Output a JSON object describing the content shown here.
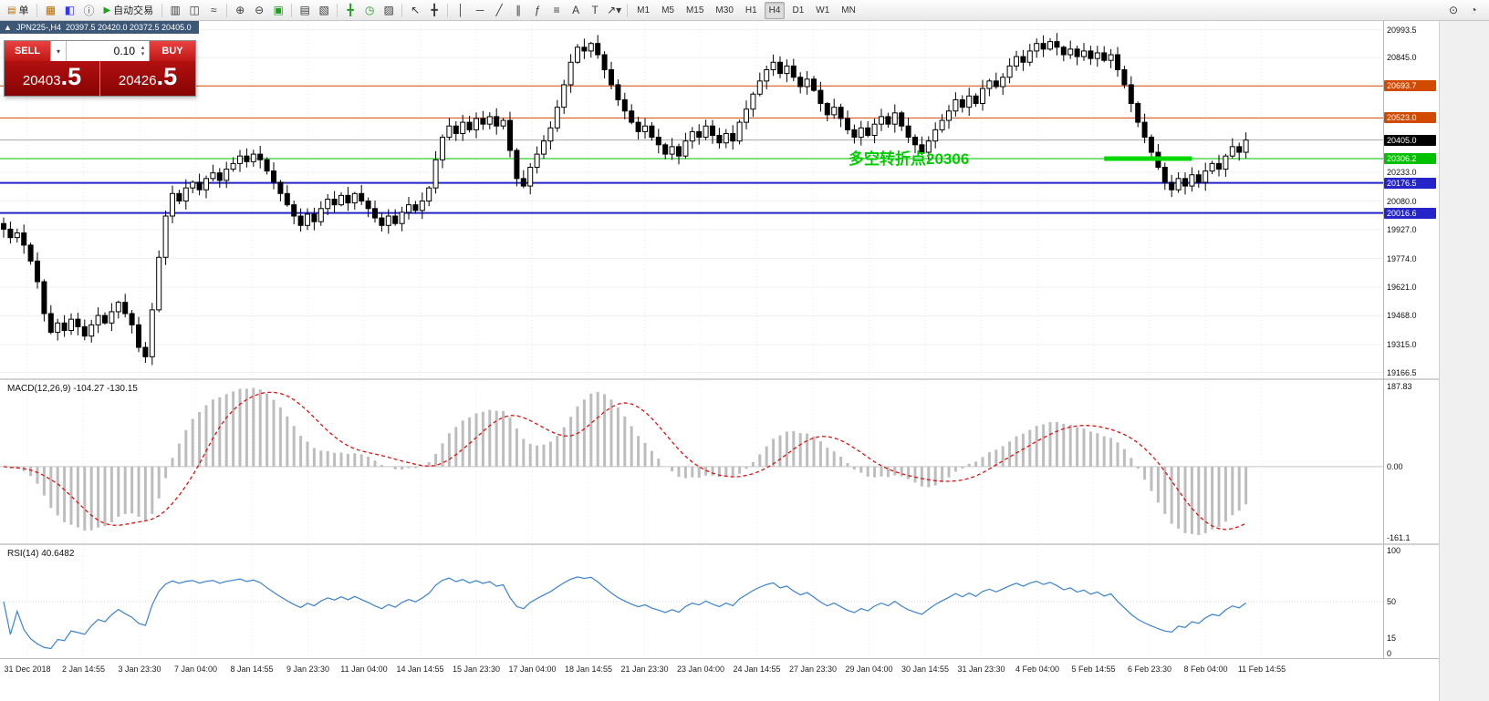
{
  "toolbar": {
    "groups": [
      [
        {
          "t": "btn",
          "name": "new-order-button",
          "icon": "new-order-icon",
          "glyph": "▤",
          "glyph_color": "#b86b00",
          "label": "单"
        }
      ],
      [
        {
          "t": "icon",
          "name": "chart-window-icon",
          "glyph": "▦",
          "glyph_color": "#b86b00"
        },
        {
          "t": "icon",
          "name": "profiles-icon",
          "glyph": "◧",
          "glyph_color": "#33f"
        },
        {
          "t": "icon",
          "name": "data-window-icon",
          "glyph": "ⓘ",
          "glyph_color": "#555"
        },
        {
          "t": "btn",
          "name": "autotrading-button",
          "icon": "autotrading-play-icon",
          "glyph": "▶",
          "glyph_color": "#1d9e1d",
          "label": "自动交易"
        }
      ],
      [
        {
          "t": "icon",
          "name": "bar-chart-icon",
          "glyph": "▥"
        },
        {
          "t": "icon",
          "name": "candlestick-chart-icon",
          "glyph": "◫"
        },
        {
          "t": "icon",
          "name": "line-chart-icon",
          "glyph": "≈"
        }
      ],
      [
        {
          "t": "icon",
          "name": "zoom-in-icon",
          "glyph": "⊕"
        },
        {
          "t": "icon",
          "name": "zoom-out-icon",
          "glyph": "⊖"
        },
        {
          "t": "icon",
          "name": "tile-windows-icon",
          "glyph": "▣",
          "glyph_color": "#1d9e1d"
        }
      ],
      [
        {
          "t": "icon",
          "name": "arrange-windows-icon",
          "glyph": "▤"
        },
        {
          "t": "icon",
          "name": "cascade-windows-icon",
          "glyph": "▧"
        }
      ],
      [
        {
          "t": "icon",
          "name": "add-indicator-icon",
          "glyph": "╋",
          "glyph_color": "#1d9e1d"
        },
        {
          "t": "icon",
          "name": "period-clock-icon",
          "glyph": "◷",
          "glyph_color": "#1d9e1d"
        },
        {
          "t": "icon",
          "name": "templates-icon",
          "glyph": "▨"
        }
      ],
      [
        {
          "t": "icon",
          "name": "cursor-icon",
          "glyph": "↖"
        },
        {
          "t": "icon",
          "name": "crosshair-icon",
          "glyph": "╋"
        }
      ],
      [
        {
          "t": "icon",
          "name": "vertical-line-icon",
          "glyph": "│"
        },
        {
          "t": "icon",
          "name": "horizontal-line-icon",
          "glyph": "─"
        },
        {
          "t": "icon",
          "name": "trendline-icon",
          "glyph": "╱"
        },
        {
          "t": "icon",
          "name": "channel-icon",
          "glyph": "∥"
        },
        {
          "t": "icon",
          "name": "fibonacci-icon",
          "glyph": "ƒ"
        },
        {
          "t": "icon",
          "name": "grid-icon",
          "glyph": "≡"
        },
        {
          "t": "icon",
          "name": "text-icon",
          "glyph": "A"
        },
        {
          "t": "icon",
          "name": "text-label-icon",
          "glyph": "T"
        },
        {
          "t": "icon",
          "name": "shapes-icon",
          "glyph": "↗▾"
        }
      ]
    ],
    "timeframes": {
      "items": [
        "M1",
        "M5",
        "M15",
        "M30",
        "H1",
        "H4",
        "D1",
        "W1",
        "MN"
      ],
      "active": "H4"
    },
    "right": [
      {
        "name": "search-icon",
        "glyph": "⊙"
      },
      {
        "name": "quotes-clock-icon",
        "glyph": "◔"
      }
    ]
  },
  "chart": {
    "collapse_glyph": "▲",
    "title_symbol": "JPN225-,H4",
    "title_ohlc": "20397.5 20420.0 20372.5 20405.0"
  },
  "trade_panel": {
    "sell_label": "SELL",
    "buy_label": "BUY",
    "volume": "0.10",
    "dropdown_glyph": "▾",
    "spin_up_glyph": "▴",
    "spin_down_glyph": "▾",
    "sell_price_main": "20403",
    "sell_price_frac": ".5",
    "buy_price_main": "20426",
    "buy_price_frac": ".5"
  },
  "annotation": {
    "text": "多空转折点20306",
    "color": "#00cc00"
  },
  "price_axis": {
    "min": 19135,
    "max": 21040,
    "plain_labels": [
      {
        "text": "20993.5",
        "value": 20993.5
      },
      {
        "text": "20845.0",
        "value": 20845.0
      },
      {
        "text": "20233.0",
        "value": 20233.0
      },
      {
        "text": "20080.0",
        "value": 20080.0
      },
      {
        "text": "19927.0",
        "value": 19927.0
      },
      {
        "text": "19774.0",
        "value": 19774.0
      },
      {
        "text": "19621.0",
        "value": 19621.0
      },
      {
        "text": "19468.0",
        "value": 19468.0
      },
      {
        "text": "19315.0",
        "value": 19315.0
      },
      {
        "text": "19166.5",
        "value": 19166.5
      }
    ]
  },
  "levels": [
    {
      "value": 20693.7,
      "label": "20693.7",
      "color": "#d24a00",
      "line_width": 1
    },
    {
      "value": 20523.0,
      "label": "20523.0",
      "color": "#d24a00",
      "line_width": 1
    },
    {
      "value": 20405.0,
      "label": "20405.0",
      "color": "#000000",
      "line_color": "#a8a8a8",
      "line_width": 1,
      "current": true
    },
    {
      "value": 20306.2,
      "label": "20306.2",
      "color": "#00c000",
      "line_width": 1
    },
    {
      "value": 20176.5,
      "label": "20176.5",
      "color": "#2424c8",
      "line_width": 2
    },
    {
      "value": 20016.6,
      "label": "20016.6",
      "color": "#2424c8",
      "line_width": 2
    }
  ],
  "highlight_segment": {
    "value": 20306.2,
    "bar_start": 163,
    "bar_end": 176,
    "color": "#00d800",
    "width": 5
  },
  "chart_data": {
    "type": "candlestick",
    "symbol": "JPN225-",
    "timeframe": "H4",
    "open_display": "20397.5",
    "high_display": "20420.0",
    "low_display": "20372.5",
    "close_display": "20405.0",
    "first_open": 19960,
    "up_color": "#ffffff",
    "down_color": "#000000",
    "outline_color": "#000000",
    "closes": [
      19930,
      19885,
      19910,
      19845,
      19760,
      19650,
      19480,
      19380,
      19430,
      19390,
      19450,
      19410,
      19360,
      19420,
      19470,
      19430,
      19490,
      19540,
      19480,
      19420,
      19300,
      19250,
      19500,
      19780,
      20000,
      20120,
      20080,
      20150,
      20180,
      20140,
      20200,
      20230,
      20190,
      20250,
      20280,
      20320,
      20290,
      20330,
      20300,
      20240,
      20180,
      20120,
      20060,
      20000,
      19950,
      20010,
      19970,
      20040,
      20090,
      20060,
      20110,
      20070,
      20120,
      20080,
      20040,
      19990,
      19950,
      20000,
      19960,
      20020,
      20060,
      20030,
      20080,
      20150,
      20300,
      20420,
      20480,
      20440,
      20500,
      20460,
      20520,
      20490,
      20530,
      20480,
      20510,
      20350,
      20200,
      20160,
      20260,
      20330,
      20400,
      20470,
      20580,
      20700,
      20820,
      20900,
      20880,
      20920,
      20860,
      20780,
      20700,
      20620,
      20560,
      20500,
      20450,
      20480,
      20420,
      20380,
      20330,
      20370,
      20320,
      20400,
      20450,
      20420,
      20480,
      20430,
      20390,
      20440,
      20400,
      20500,
      20570,
      20650,
      20720,
      20780,
      20820,
      20760,
      20800,
      20740,
      20690,
      20730,
      20670,
      20600,
      20540,
      20580,
      20520,
      20460,
      20420,
      20470,
      20430,
      20490,
      20530,
      20490,
      20550,
      20480,
      20420,
      20380,
      20340,
      20400,
      20460,
      20510,
      20560,
      20620,
      20580,
      20640,
      20600,
      20680,
      20720,
      20690,
      20740,
      20800,
      20850,
      20820,
      20880,
      20920,
      20890,
      20930,
      20900,
      20860,
      20890,
      20850,
      20880,
      20840,
      20870,
      20830,
      20860,
      20780,
      20700,
      20600,
      20500,
      20420,
      20340,
      20260,
      20180,
      20140,
      20200,
      20160,
      20220,
      20180,
      20240,
      20280,
      20250,
      20320,
      20370,
      20340,
      20405
    ],
    "time_labels": [
      "31 Dec 2018",
      "2 Jan 14:55",
      "3 Jan 23:30",
      "7 Jan 04:00",
      "8 Jan 14:55",
      "9 Jan 23:30",
      "11 Jan 04:00",
      "14 Jan 14:55",
      "15 Jan 23:30",
      "17 Jan 04:00",
      "18 Jan 14:55",
      "21 Jan 23:30",
      "23 Jan 04:00",
      "24 Jan 14:55",
      "27 Jan 23:30",
      "29 Jan 04:00",
      "30 Jan 14:55",
      "31 Jan 23:30",
      "4 Feb 04:00",
      "5 Feb 14:55",
      "6 Feb 23:30",
      "8 Feb 04:00",
      "11 Feb 14:55"
    ],
    "macd": {
      "label": "MACD(12,26,9) -104.27 -130.15",
      "fast": 12,
      "slow": 26,
      "signal": 9,
      "value": -104.27,
      "signal_value": -130.15,
      "hist_color": "#bdbdbd",
      "line_color": "#e01010",
      "ticks": [
        {
          "value": 187.83,
          "text": "187.83"
        },
        {
          "value": 0,
          "text": "0.00"
        },
        {
          "value": -161.1,
          "text": "-161.1"
        }
      ]
    },
    "rsi": {
      "label": "RSI(14) 40.6482",
      "period": 14,
      "value": 40.6482,
      "line_color": "#3b82d0",
      "ticks": [
        {
          "value": 100,
          "text": "100"
        },
        {
          "value": 50,
          "text": "50"
        },
        {
          "value": 15,
          "text": "15"
        },
        {
          "value": 0,
          "text": "0"
        }
      ]
    }
  }
}
